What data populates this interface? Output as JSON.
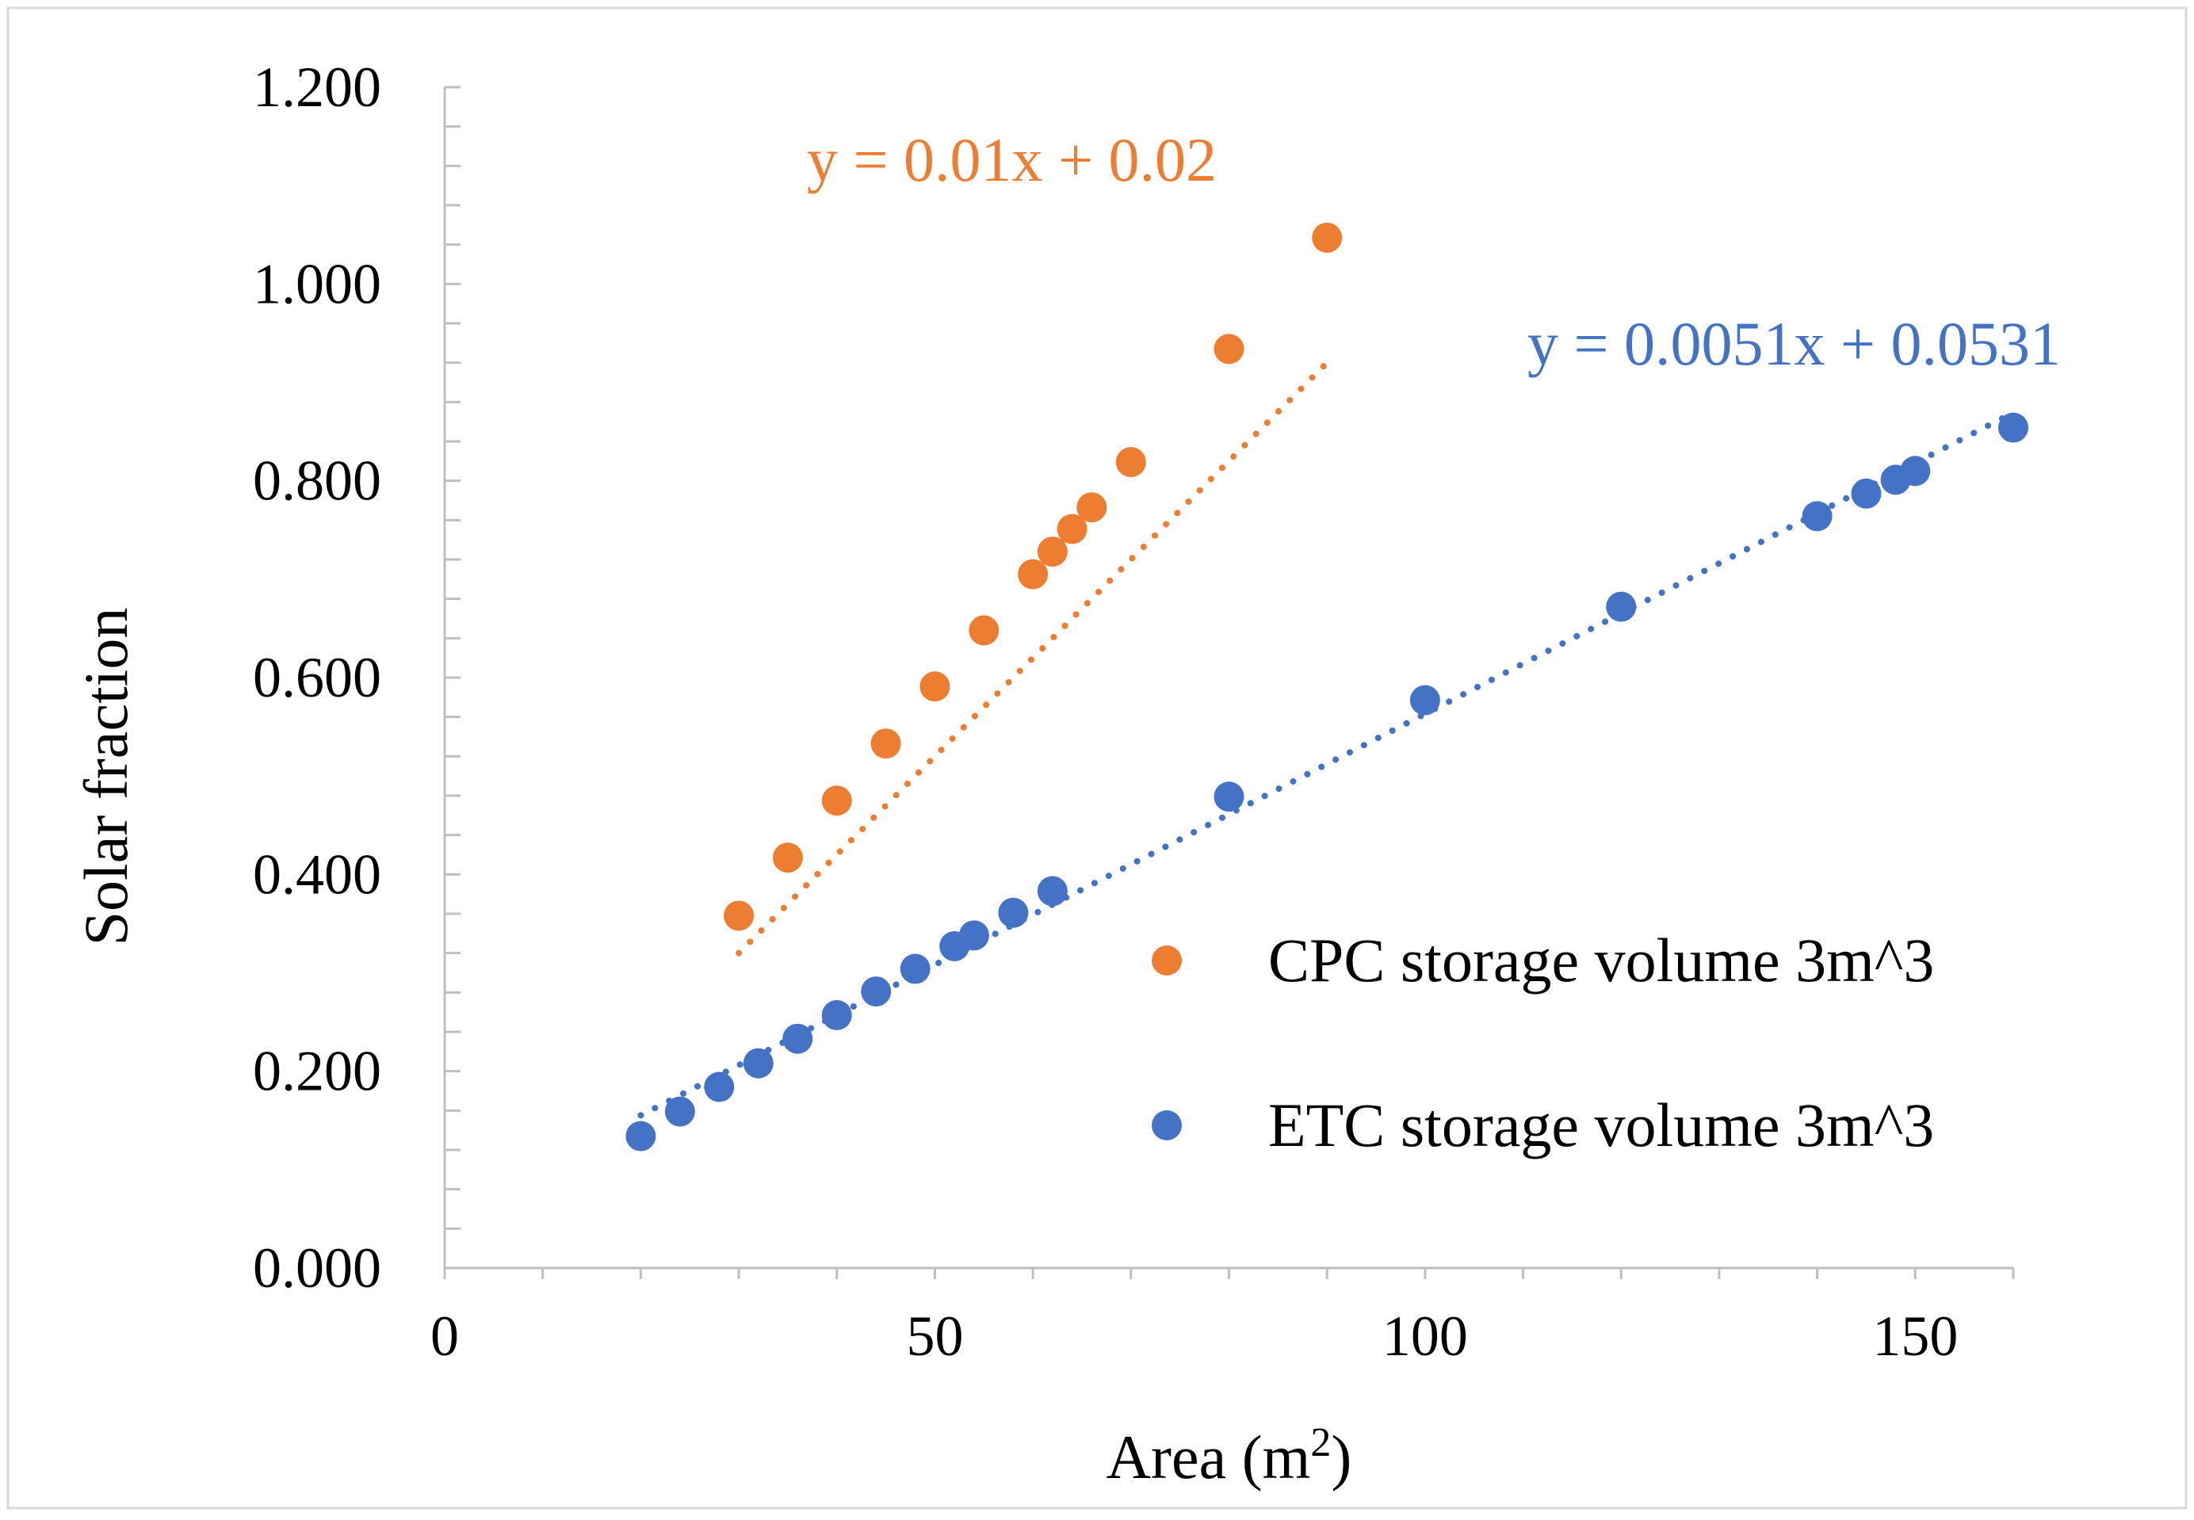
{
  "chart_data": {
    "type": "scatter",
    "title": "",
    "xlabel": "Area (m",
    "xlabel_sup": "2",
    "xlabel_end": ")",
    "ylabel": "Solar fraction",
    "xlim": [
      0,
      160
    ],
    "ylim": [
      0,
      1.2
    ],
    "x_ticks": [
      0,
      50,
      100,
      150
    ],
    "x_tick_labels": [
      "0",
      "50",
      "100",
      "150"
    ],
    "x_minor_step": 10,
    "y_ticks": [
      0,
      0.2,
      0.4,
      0.6,
      0.8,
      1.0,
      1.2
    ],
    "y_tick_labels": [
      "0.000",
      "0.200",
      "0.400",
      "0.600",
      "0.800",
      "1.000",
      "1.200"
    ],
    "y_minor_step": 0.04,
    "grid": false,
    "legend_position": "bottom-right",
    "series": [
      {
        "name": "CPC storage volume 3m^3",
        "color": "#ED7D31",
        "x": [
          30,
          35,
          40,
          45,
          50,
          55,
          60,
          62,
          64,
          66,
          70,
          80,
          90
        ],
        "y": [
          0.358,
          0.417,
          0.475,
          0.533,
          0.591,
          0.648,
          0.705,
          0.728,
          0.751,
          0.773,
          0.819,
          0.934,
          1.047
        ],
        "trendline": {
          "slope": 0.01,
          "intercept": 0.02,
          "x_range": [
            30,
            90
          ],
          "label": "y = 0.01x + 0.02"
        }
      },
      {
        "name": "ETC storage volume 3m^3",
        "color": "#4472C4",
        "x": [
          20,
          24,
          28,
          32,
          36,
          40,
          44,
          48,
          52,
          54,
          58,
          62,
          80,
          100,
          120,
          140,
          145,
          148,
          150,
          160
        ],
        "y": [
          0.134,
          0.159,
          0.184,
          0.208,
          0.233,
          0.257,
          0.281,
          0.304,
          0.327,
          0.338,
          0.361,
          0.383,
          0.479,
          0.577,
          0.672,
          0.764,
          0.787,
          0.801,
          0.81,
          0.854
        ],
        "trendline": {
          "slope": 0.0051,
          "intercept": 0.0531,
          "x_range": [
            20,
            160
          ],
          "label": "y = 0.0051x + 0.0531"
        }
      }
    ]
  }
}
